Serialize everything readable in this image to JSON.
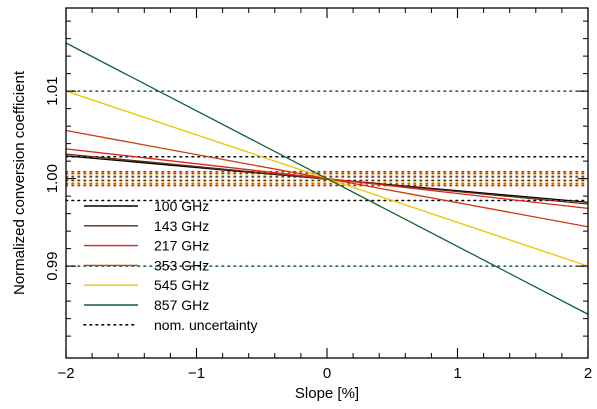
{
  "chart_data": {
    "type": "line",
    "xlabel": "Slope [%]",
    "ylabel": "Normalized conversion coefficient",
    "xlim": [
      -2,
      2
    ],
    "ylim": [
      0.9795,
      1.0195
    ],
    "x_ticks": [
      -2,
      -1,
      0,
      1,
      2
    ],
    "x_tick_labels": [
      "−2",
      "−1",
      "0",
      "1",
      "2"
    ],
    "y_ticks": [
      0.99,
      1.0,
      1.01
    ],
    "y_tick_labels": [
      "0.99",
      "1.00",
      "1.01"
    ],
    "grid": false,
    "legend_position": "bottom-left",
    "series": [
      {
        "name": "100 GHz",
        "color": "#000000",
        "x": [
          -2,
          2
        ],
        "y": [
          1.0026,
          0.9973
        ]
      },
      {
        "name": "143 GHz",
        "color": "#5a2a12",
        "x": [
          -2,
          2
        ],
        "y": [
          1.0028,
          0.9971
        ]
      },
      {
        "name": "217 GHz",
        "color": "#e0231a",
        "x": [
          -2,
          2
        ],
        "y": [
          1.0034,
          0.9966
        ]
      },
      {
        "name": "353 GHz",
        "color": "#c83c0a",
        "x": [
          -2,
          2
        ],
        "y": [
          1.0055,
          0.9945
        ]
      },
      {
        "name": "545 GHz",
        "color": "#f2c200",
        "x": [
          -2,
          2
        ],
        "y": [
          1.01,
          0.99
        ]
      },
      {
        "name": "857 GHz",
        "color": "#0d5e3a",
        "x": [
          -2,
          2
        ],
        "y": [
          1.0155,
          0.9845
        ]
      }
    ],
    "uncertainty": {
      "name": "nom. uncertainty",
      "lines": [
        {
          "y": 1.01,
          "color": "#0d5e3a"
        },
        {
          "y": 0.99,
          "color": "#0d5e3a"
        },
        {
          "y": 1.0025,
          "color": "#000000"
        },
        {
          "y": 0.9975,
          "color": "#000000"
        },
        {
          "y": 1.0008,
          "color": "#e0231a"
        },
        {
          "y": 0.9992,
          "color": "#e0231a"
        },
        {
          "y": 1.0004,
          "color": "#f2c200"
        },
        {
          "y": 0.9996,
          "color": "#f2c200"
        },
        {
          "y": 1.0006,
          "color": "#c83c0a"
        },
        {
          "y": 0.9994,
          "color": "#c83c0a"
        },
        {
          "y": 1.0002,
          "color": "#5a2a12"
        },
        {
          "y": 0.9998,
          "color": "#5a2a12"
        }
      ]
    },
    "legend_entries": [
      {
        "label": "100 GHz",
        "color": "#000000",
        "style": "solid"
      },
      {
        "label": "143 GHz",
        "color": "#5a2a12",
        "style": "solid"
      },
      {
        "label": "217 GHz",
        "color": "#e0231a",
        "style": "solid"
      },
      {
        "label": "353 GHz",
        "color": "#c83c0a",
        "style": "solid"
      },
      {
        "label": "545 GHz",
        "color": "#f2c200",
        "style": "solid"
      },
      {
        "label": "857 GHz",
        "color": "#0d5e3a",
        "style": "solid"
      },
      {
        "label": "nom. uncertainty",
        "color": "#000000",
        "style": "dotted"
      }
    ]
  }
}
